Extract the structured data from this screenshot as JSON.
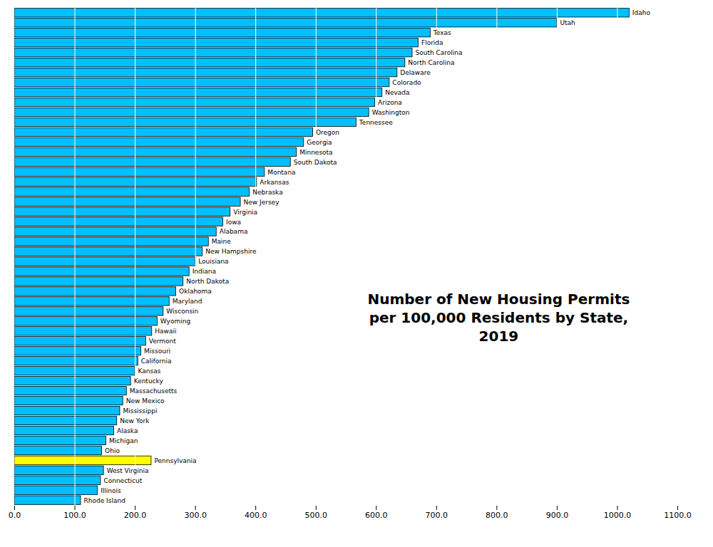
{
  "chart_data": {
    "type": "bar",
    "orientation": "horizontal",
    "title": "Number of New Housing Permits\nper 100,000 Residents by State,\n2019",
    "categories": [
      "Idaho",
      "Utah",
      "Texas",
      "Florida",
      "South Carolina",
      "North Carolina",
      "Delaware",
      "Colorado",
      "Nevada",
      "Arizona",
      "Washington",
      "Tennessee",
      "Oregon",
      "Georgia",
      "Minnesota",
      "South Dakota",
      "Montana",
      "Arkansas",
      "Nebraska",
      "New Jersey",
      "Virginia",
      "Iowa",
      "Alabama",
      "Maine",
      "New Hampshire",
      "Louisiana",
      "Indiana",
      "North Dakota",
      "Oklahoma",
      "Maryland",
      "Wisconsin",
      "Wyoming",
      "Hawaii",
      "Vermont",
      "Missouri",
      "California",
      "Kansas",
      "Kentucky",
      "Massachusetts",
      "New Mexico",
      "Mississippi",
      "New York",
      "Alaska",
      "Michigan",
      "Ohio",
      "Pennsylvania",
      "West Virginia",
      "Connecticut",
      "Illinois",
      "Rhode Island"
    ],
    "values": [
      1020,
      900,
      690,
      670,
      660,
      648,
      635,
      622,
      610,
      598,
      588,
      567,
      495,
      480,
      468,
      458,
      415,
      402,
      390,
      375,
      358,
      346,
      335,
      322,
      312,
      300,
      290,
      280,
      268,
      257,
      247,
      237,
      228,
      218,
      210,
      205,
      200,
      193,
      186,
      180,
      175,
      170,
      165,
      152,
      145,
      227,
      148,
      143,
      138,
      110
    ],
    "colors": [
      "#00BFFF",
      "#00BFFF",
      "#00BFFF",
      "#00BFFF",
      "#00BFFF",
      "#00BFFF",
      "#00BFFF",
      "#00BFFF",
      "#00BFFF",
      "#00BFFF",
      "#00BFFF",
      "#00BFFF",
      "#00BFFF",
      "#00BFFF",
      "#00BFFF",
      "#00BFFF",
      "#00BFFF",
      "#00BFFF",
      "#00BFFF",
      "#00BFFF",
      "#00BFFF",
      "#00BFFF",
      "#00BFFF",
      "#00BFFF",
      "#00BFFF",
      "#00BFFF",
      "#00BFFF",
      "#00BFFF",
      "#00BFFF",
      "#00BFFF",
      "#00BFFF",
      "#00BFFF",
      "#00BFFF",
      "#00BFFF",
      "#00BFFF",
      "#00BFFF",
      "#00BFFF",
      "#00BFFF",
      "#00BFFF",
      "#00BFFF",
      "#00BFFF",
      "#00BFFF",
      "#00BFFF",
      "#00BFFF",
      "#00BFFF",
      "#FFFF00",
      "#00BFFF",
      "#00BFFF",
      "#00BFFF",
      "#00BFFF"
    ],
    "xlim": [
      0,
      1100
    ],
    "xticks": [
      {
        "value": 0,
        "label": "0.0"
      },
      {
        "value": 100,
        "label": "100.0"
      },
      {
        "value": 200,
        "label": "200.0"
      },
      {
        "value": 300,
        "label": "300.0"
      },
      {
        "value": 400,
        "label": "400.0"
      },
      {
        "value": 500,
        "label": "500.0"
      },
      {
        "value": 600,
        "label": "600.0"
      },
      {
        "value": 700,
        "label": "700.0"
      },
      {
        "value": 800,
        "label": "800.0"
      },
      {
        "value": 900,
        "label": "900.0"
      },
      {
        "value": 1000,
        "label": "1000.0"
      },
      {
        "value": 1100,
        "label": "1100.0"
      }
    ],
    "grid": true,
    "tick_labels": "x"
  }
}
